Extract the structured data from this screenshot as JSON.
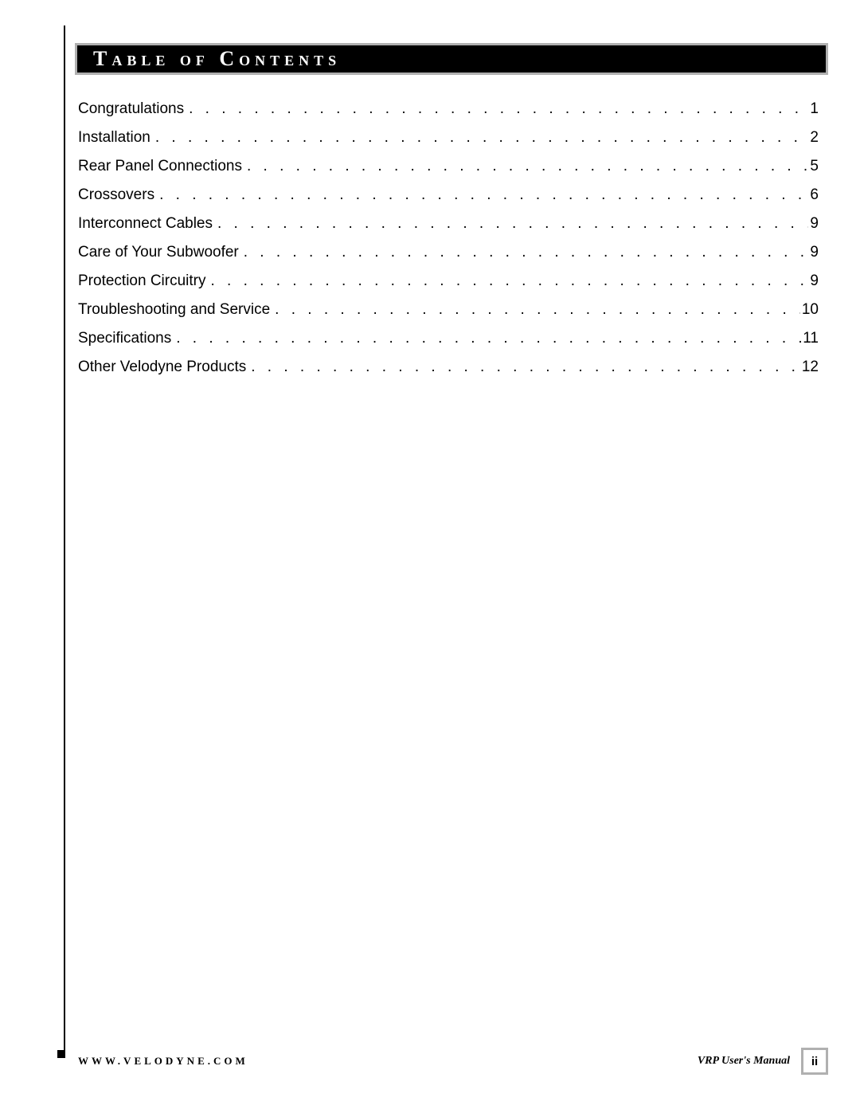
{
  "title": "Table of Contents",
  "toc": [
    {
      "label": "Congratulations",
      "page": "1"
    },
    {
      "label": "Installation",
      "page": "2"
    },
    {
      "label": "Rear Panel Connections",
      "page": "5"
    },
    {
      "label": "Crossovers",
      "page": "6"
    },
    {
      "label": "Interconnect Cables",
      "page": "9"
    },
    {
      "label": "Care of Your Subwoofer",
      "page": "9"
    },
    {
      "label": "Protection Circuitry",
      "page": "9"
    },
    {
      "label": "Troubleshooting and Service",
      "page": "10"
    },
    {
      "label": "Specifications",
      "page": "11"
    },
    {
      "label": "Other Velodyne Products",
      "page": "12"
    }
  ],
  "dots": ". . . . . . . . . . . . . . . . . . . . . . . . . . . . . . . . . . . . . . . . . . . . . . . . . . . . . . . . . . . . . . . . . . . . . . . . . . . . . . . . . . . . . . . . . . . . . . . . . . . .",
  "footer": {
    "url": "WWW.VELODYNE.COM",
    "manual": "VRP User's Manual",
    "page": "ii"
  },
  "colors": {
    "title_bg": "#000000",
    "title_border": "#b0b0b0",
    "title_fg": "#ffffff",
    "text": "#000000",
    "page_bg": "#ffffff"
  }
}
